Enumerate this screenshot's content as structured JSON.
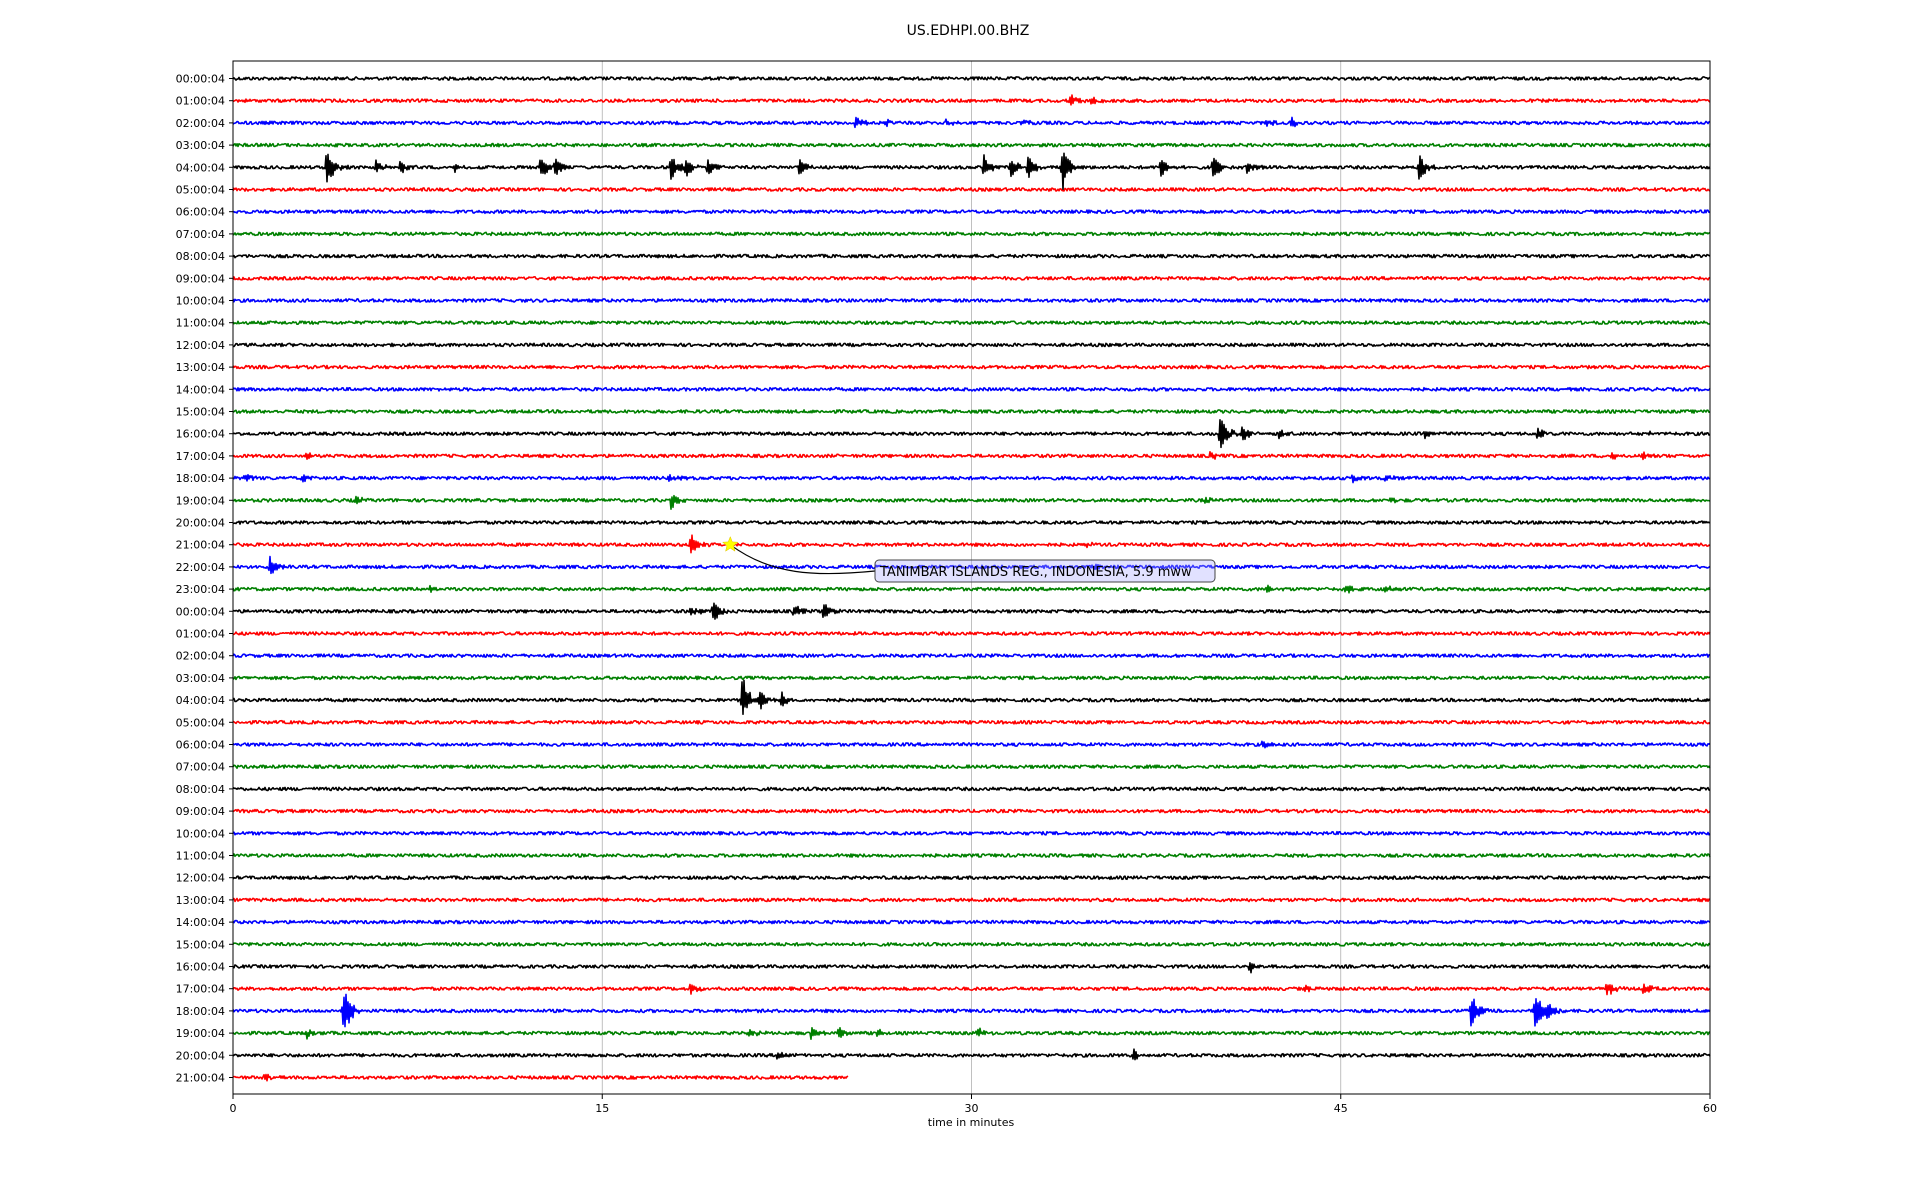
{
  "chart_data": {
    "type": "line",
    "title": "US.EDHPI.00.BHZ",
    "xlabel": "time in minutes",
    "ylabel": "",
    "xlim": [
      0,
      60
    ],
    "x_ticks": [
      0,
      15,
      30,
      45,
      60
    ],
    "grid": "vertical",
    "row_colors": [
      "#000000",
      "#ff0000",
      "#0000ff",
      "#008000"
    ],
    "row_labels": [
      "00:00:04",
      "01:00:04",
      "02:00:04",
      "03:00:04",
      "04:00:04",
      "05:00:04",
      "06:00:04",
      "07:00:04",
      "08:00:04",
      "09:00:04",
      "10:00:04",
      "11:00:04",
      "12:00:04",
      "13:00:04",
      "14:00:04",
      "15:00:04",
      "16:00:04",
      "17:00:04",
      "18:00:04",
      "19:00:04",
      "20:00:04",
      "21:00:04",
      "22:00:04",
      "23:00:04",
      "00:00:04",
      "01:00:04",
      "02:00:04",
      "03:00:04",
      "04:00:04",
      "05:00:04",
      "06:00:04",
      "07:00:04",
      "08:00:04",
      "09:00:04",
      "10:00:04",
      "11:00:04",
      "12:00:04",
      "13:00:04",
      "14:00:04",
      "15:00:04",
      "16:00:04",
      "17:00:04",
      "18:00:04",
      "19:00:04",
      "20:00:04",
      "21:00:04"
    ],
    "last_row_end_minutes": 25,
    "events": [
      {
        "row": 1,
        "at": [
          34,
          34.9
        ],
        "amp": [
          0.5,
          0.3
        ]
      },
      {
        "row": 2,
        "at": [
          25.3,
          26.5,
          29,
          32,
          42,
          43
        ],
        "amp": [
          0.5,
          0.3,
          0.3,
          0.3,
          0.3,
          0.4
        ]
      },
      {
        "row": 4,
        "at": [
          3.8,
          5.8,
          6.8,
          9,
          12.5,
          13.1,
          17.8,
          18.4,
          19.3,
          23,
          30.5,
          31.6,
          32.3,
          33.7,
          37.7,
          39.8,
          41.2,
          48.2
        ],
        "amp": [
          1.8,
          0.6,
          0.5,
          0.4,
          1.1,
          1.0,
          1.2,
          0.7,
          0.9,
          0.8,
          1.0,
          0.9,
          1.0,
          1.9,
          0.9,
          1.2,
          0.5,
          1.1
        ]
      },
      {
        "row": 16,
        "at": [
          40.1,
          41,
          42.5,
          48.4,
          53,
          57.5
        ],
        "amp": [
          2.0,
          0.7,
          0.4,
          0.4,
          0.4,
          0.3
        ]
      },
      {
        "row": 17,
        "at": [
          3,
          39.7,
          56,
          57.3
        ],
        "amp": [
          0.4,
          0.4,
          0.4,
          0.3
        ]
      },
      {
        "row": 18,
        "at": [
          0.5,
          2.8,
          17.7,
          45.5,
          46.8
        ],
        "amp": [
          0.4,
          0.4,
          0.3,
          0.3,
          0.3
        ]
      },
      {
        "row": 19,
        "at": [
          5,
          17.8,
          39.5,
          47
        ],
        "amp": [
          0.3,
          0.7,
          0.3,
          0.3
        ]
      },
      {
        "row": 21,
        "at": [
          18.6,
          34.6
        ],
        "amp": [
          0.9,
          0.3
        ]
      },
      {
        "row": 22,
        "at": [
          1.5,
          34.9
        ],
        "amp": [
          0.9,
          0.3
        ]
      },
      {
        "row": 23,
        "at": [
          8,
          42,
          45.2,
          46.8
        ],
        "amp": [
          0.3,
          0.4,
          0.3,
          0.3
        ]
      },
      {
        "row": 24,
        "at": [
          18.6,
          19.5,
          22.8,
          24
        ],
        "amp": [
          0.5,
          1.0,
          0.6,
          0.6
        ]
      },
      {
        "row": 28,
        "at": [
          20.7,
          21.4,
          22.3
        ],
        "amp": [
          2.0,
          0.8,
          0.6
        ]
      },
      {
        "row": 30,
        "at": [
          41.8
        ],
        "amp": [
          0.3
        ]
      },
      {
        "row": 40,
        "at": [
          41.3
        ],
        "amp": [
          0.5
        ]
      },
      {
        "row": 41,
        "at": [
          18.6,
          43.5,
          55.8,
          57.3
        ],
        "amp": [
          0.5,
          0.3,
          0.7,
          0.5
        ]
      },
      {
        "row": 42,
        "at": [
          4.5,
          50.3,
          52.9,
          53.4
        ],
        "amp": [
          2.3,
          1.4,
          1.9,
          0.7
        ]
      },
      {
        "row": 43,
        "at": [
          3,
          21,
          23.5,
          24.6,
          26.2,
          30.2
        ],
        "amp": [
          0.4,
          0.4,
          0.5,
          0.6,
          0.4,
          0.5
        ]
      },
      {
        "row": 44,
        "at": [
          22.1,
          36.6
        ],
        "amp": [
          0.4,
          0.4
        ]
      },
      {
        "row": 45,
        "at": [
          1.3
        ],
        "amp": [
          0.3
        ]
      }
    ],
    "annotation": {
      "text": "TANIMBAR ISLANDS REG., INDONESIA, 5.9 mww",
      "row": 21,
      "minute": 20.2,
      "marker_color": "#ffff00",
      "box_fill": "#aaaaff"
    }
  }
}
